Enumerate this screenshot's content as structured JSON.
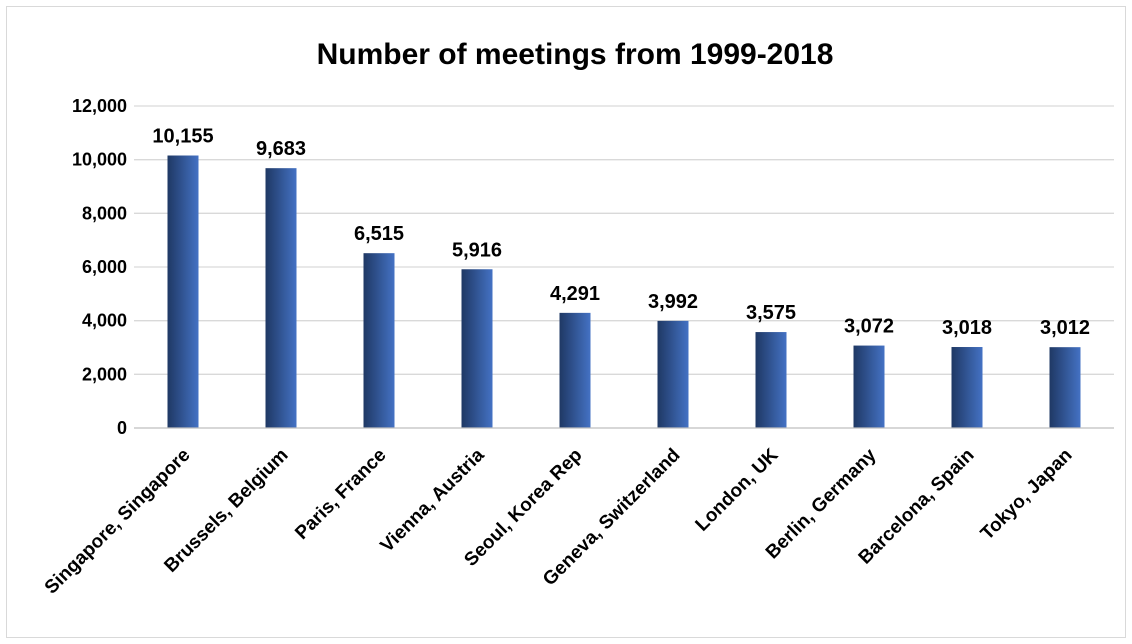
{
  "chart_data": {
    "type": "bar",
    "title": "Number of meetings from 1999-2018",
    "xlabel": "",
    "ylabel": "",
    "categories": [
      "Singapore, Singapore",
      "Brussels, Belgium",
      "Paris, France",
      "Vienna, Austria",
      "Seoul, Korea Rep",
      "Geneva, Switzerland",
      "London, UK",
      "Berlin, Germany",
      "Barcelona, Spain",
      "Tokyo, Japan"
    ],
    "values": [
      10155,
      9683,
      6515,
      5916,
      4291,
      3992,
      3575,
      3072,
      3018,
      3012
    ],
    "value_labels": [
      "10,155",
      "9,683",
      "6,515",
      "5,916",
      "4,291",
      "3,992",
      "3,575",
      "3,072",
      "3,018",
      "3,012"
    ],
    "ylim": [
      0,
      12000
    ],
    "yticks": [
      0,
      2000,
      4000,
      6000,
      8000,
      10000,
      12000
    ],
    "ytick_labels": [
      "0",
      "2,000",
      "4,000",
      "6,000",
      "8,000",
      "10,000",
      "12,000"
    ],
    "grid": true,
    "legend": "none",
    "colors": {
      "bar_dark": "#1f3864",
      "bar_light": "#4472c4"
    }
  }
}
